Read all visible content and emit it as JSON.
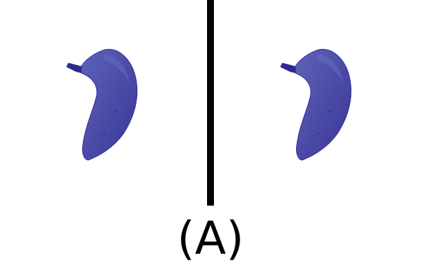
{
  "figure": {
    "panel_label": "(A)",
    "views": [
      {
        "id": "left",
        "shape": "banana-shaped-3d-mesh",
        "color": "#4a4aa6"
      },
      {
        "id": "right",
        "shape": "banana-shaped-3d-mesh",
        "color": "#4a4aa6"
      }
    ],
    "colors": {
      "mesh_main": "#4a4aa6",
      "mesh_light": "#5e62b8",
      "mesh_dark": "#2d2a8c",
      "divider": "#000000",
      "background": "#ffffff"
    }
  }
}
